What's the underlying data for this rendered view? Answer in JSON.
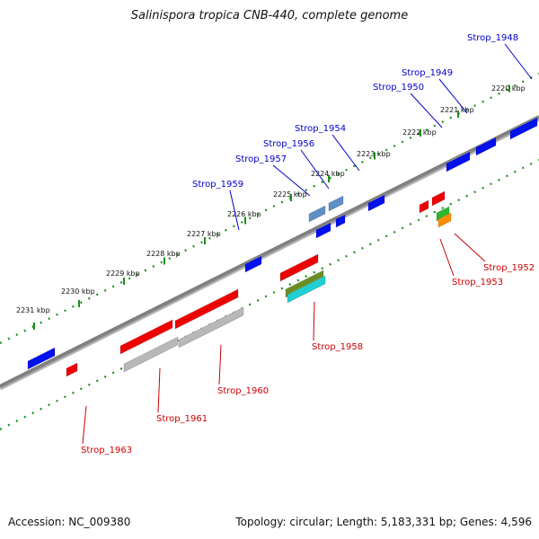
{
  "title": "Salinispora tropica CNB-440, complete genome",
  "footer": {
    "accession": "Accession: NC_009380",
    "summary": "Topology: circular; Length: 5,183,331 bp; Genes: 4,596"
  },
  "colors": {
    "backbone": "#808080",
    "ticks": "#1a8f1a",
    "plus_strand_label": "#0000cc",
    "minus_strand_label": "#cc0000"
  },
  "kbp_ticks": [
    "2220 kbp",
    "2221 kbp",
    "2222 kbp",
    "2223 kbp",
    "2224 kbp",
    "2225 kbp",
    "2226 kbp",
    "2227 kbp",
    "2228 kbp",
    "2229 kbp",
    "2230 kbp",
    "2231 kbp"
  ],
  "genes_plus": [
    {
      "label": "Strop_1948",
      "color": "blue"
    },
    {
      "label": "Strop_1949",
      "color": "blue"
    },
    {
      "label": "Strop_1950",
      "color": "blue"
    },
    {
      "label": "Strop_1954",
      "color": "steelblue"
    },
    {
      "label": "Strop_1956",
      "color": "steelblue"
    },
    {
      "label": "Strop_1957",
      "color": "blue"
    },
    {
      "label": "Strop_1959",
      "color": "blue"
    }
  ],
  "genes_minus": [
    {
      "label": "Strop_1952",
      "color": "green"
    },
    {
      "label": "Strop_1953",
      "color": "orange"
    },
    {
      "label": "Strop_1958",
      "color": "olive/cyan"
    },
    {
      "label": "Strop_1960",
      "color": "red/gray"
    },
    {
      "label": "Strop_1961",
      "color": "red/gray"
    },
    {
      "label": "Strop_1963",
      "color": "red"
    }
  ]
}
